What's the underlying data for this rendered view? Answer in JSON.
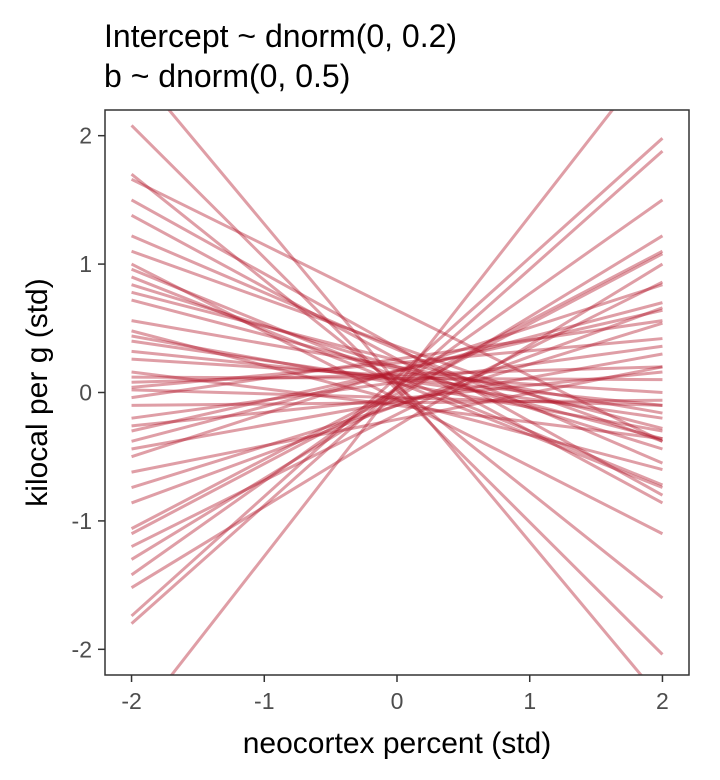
{
  "chart_data": {
    "type": "line",
    "title": [
      "Intercept ~ dnorm(0, 0.2)",
      "b ~ dnorm(0, 0.5)"
    ],
    "xlabel": "neocortex percent (std)",
    "ylabel": "kilocal per g (std)",
    "xlim": [
      -2.2,
      2.2
    ],
    "ylim": [
      -2.2,
      2.2
    ],
    "x_ticks": [
      -2,
      -1,
      0,
      1,
      2
    ],
    "y_ticks": [
      -2,
      -1,
      0,
      1,
      2
    ],
    "x_tick_labels": [
      "-2",
      "-1",
      "0",
      "1",
      "2"
    ],
    "y_tick_labels": [
      "-2",
      "-1",
      "0",
      "1",
      "2"
    ],
    "grid": false,
    "line_color": "#b2182b",
    "line_opacity": 0.42,
    "series_description_note": null,
    "lines": [
      {
        "x": [
          -2,
          2
        ],
        "y": [
          2.08,
          -2.04
        ]
      },
      {
        "x": [
          -2,
          2
        ],
        "y": [
          2.55,
          -2.4
        ]
      },
      {
        "x": [
          -2,
          2
        ],
        "y": [
          1.7,
          -1.6
        ]
      },
      {
        "x": [
          -2,
          2
        ],
        "y": [
          1.66,
          -0.38
        ]
      },
      {
        "x": [
          -2,
          2
        ],
        "y": [
          1.5,
          -0.8
        ]
      },
      {
        "x": [
          -2,
          2
        ],
        "y": [
          1.38,
          -0.86
        ]
      },
      {
        "x": [
          -2,
          2
        ],
        "y": [
          1.22,
          -0.55
        ]
      },
      {
        "x": [
          -2,
          2
        ],
        "y": [
          1.1,
          -0.38
        ]
      },
      {
        "x": [
          -2,
          2
        ],
        "y": [
          0.96,
          -0.72
        ]
      },
      {
        "x": [
          -2,
          2
        ],
        "y": [
          0.9,
          -0.74
        ]
      },
      {
        "x": [
          -2,
          2
        ],
        "y": [
          0.84,
          -0.44
        ]
      },
      {
        "x": [
          -2,
          2
        ],
        "y": [
          0.78,
          -0.28
        ]
      },
      {
        "x": [
          -2,
          2
        ],
        "y": [
          0.72,
          -0.36
        ]
      },
      {
        "x": [
          -2,
          2
        ],
        "y": [
          0.48,
          -0.6
        ]
      },
      {
        "x": [
          -2,
          2
        ],
        "y": [
          0.44,
          -0.3
        ]
      },
      {
        "x": [
          -2,
          2
        ],
        "y": [
          0.4,
          -0.2
        ]
      },
      {
        "x": [
          -2,
          2
        ],
        "y": [
          0.32,
          -0.1
        ]
      },
      {
        "x": [
          -2,
          2
        ],
        "y": [
          0.26,
          0.0
        ]
      },
      {
        "x": [
          -2,
          2
        ],
        "y": [
          0.16,
          -0.36
        ]
      },
      {
        "x": [
          -2,
          2
        ],
        "y": [
          0.12,
          0.1
        ]
      },
      {
        "x": [
          -2,
          2
        ],
        "y": [
          0.08,
          0.2
        ]
      },
      {
        "x": [
          -2,
          2
        ],
        "y": [
          0.04,
          0.42
        ]
      },
      {
        "x": [
          -2,
          2
        ],
        "y": [
          -0.04,
          0.56
        ]
      },
      {
        "x": [
          -2,
          2
        ],
        "y": [
          -0.1,
          -0.06
        ]
      },
      {
        "x": [
          -2,
          2
        ],
        "y": [
          -0.2,
          0.36
        ]
      },
      {
        "x": [
          -2,
          2
        ],
        "y": [
          -0.3,
          0.64
        ]
      },
      {
        "x": [
          -2,
          2
        ],
        "y": [
          -0.38,
          0.7
        ]
      },
      {
        "x": [
          -2,
          2
        ],
        "y": [
          -0.44,
          0.3
        ]
      },
      {
        "x": [
          -2,
          2
        ],
        "y": [
          -0.5,
          0.84
        ]
      },
      {
        "x": [
          -2,
          2
        ],
        "y": [
          -0.62,
          0.2
        ]
      },
      {
        "x": [
          -2,
          2
        ],
        "y": [
          -0.74,
          0.54
        ]
      },
      {
        "x": [
          -2,
          2
        ],
        "y": [
          -0.86,
          0.66
        ]
      },
      {
        "x": [
          -2,
          2
        ],
        "y": [
          -1.06,
          1.1
        ]
      },
      {
        "x": [
          -2,
          2
        ],
        "y": [
          -1.1,
          1.08
        ]
      },
      {
        "x": [
          -2,
          2
        ],
        "y": [
          -1.2,
          0.86
        ]
      },
      {
        "x": [
          -2,
          2
        ],
        "y": [
          -1.3,
          1.22
        ]
      },
      {
        "x": [
          -2,
          2
        ],
        "y": [
          -1.42,
          1.5
        ]
      },
      {
        "x": [
          -2,
          2
        ],
        "y": [
          -1.52,
          1.0
        ]
      },
      {
        "x": [
          -2,
          2
        ],
        "y": [
          -1.74,
          1.98
        ]
      },
      {
        "x": [
          -2,
          2
        ],
        "y": [
          -1.8,
          1.88
        ]
      },
      {
        "x": [
          -2,
          2
        ],
        "y": [
          -2.6,
          2.7
        ]
      },
      {
        "x": [
          -2,
          2
        ],
        "y": [
          0.02,
          -0.1
        ]
      },
      {
        "x": [
          -2,
          2
        ],
        "y": [
          0.56,
          -0.16
        ]
      },
      {
        "x": [
          -2,
          2
        ],
        "y": [
          -0.26,
          0.16
        ]
      },
      {
        "x": [
          -2,
          2
        ],
        "y": [
          1.0,
          -1.1
        ]
      }
    ]
  }
}
